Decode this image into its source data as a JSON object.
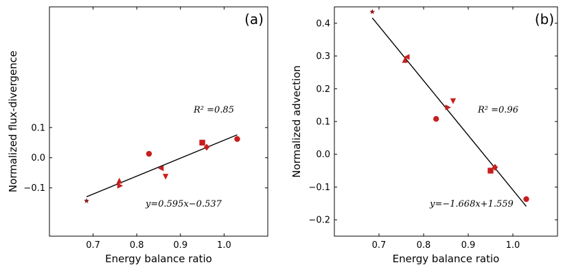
{
  "colors": {
    "marker": "#c81e1e",
    "marker_dark": "#8b1a1a",
    "fit_line": "#000000",
    "frame": "#000000"
  },
  "chart_data": [
    {
      "type": "scatter",
      "panel_label": "(a)",
      "xlabel": "Energy balance ratio",
      "ylabel": "Normalized flux-divergence",
      "xlim": [
        0.6,
        1.1
      ],
      "ylim": [
        -0.26,
        0.5
      ],
      "xticks": [
        "0.7",
        "0.8",
        "0.9",
        "1.0"
      ],
      "xtick_values": [
        0.7,
        0.8,
        0.9,
        1.0
      ],
      "yticks": [
        "−0.1",
        "0.0",
        "0.1"
      ],
      "ytick_values": [
        -0.1,
        0.0,
        0.1
      ],
      "r2_label": "R² =0.85",
      "equation_label": "y=0.595x−0.537",
      "fit": {
        "slope": 0.595,
        "intercept": -0.537,
        "x_range": [
          0.685,
          1.03
        ]
      },
      "points": [
        {
          "x": 0.685,
          "y": -0.143,
          "marker": "star"
        },
        {
          "x": 0.76,
          "y": -0.076,
          "marker": "triangle-up"
        },
        {
          "x": 0.762,
          "y": -0.093,
          "marker": "triangle-right"
        },
        {
          "x": 0.828,
          "y": 0.013,
          "marker": "circle"
        },
        {
          "x": 0.855,
          "y": -0.035,
          "marker": "triangle-left"
        },
        {
          "x": 0.866,
          "y": -0.063,
          "marker": "triangle-down"
        },
        {
          "x": 0.95,
          "y": 0.05,
          "marker": "square"
        },
        {
          "x": 0.96,
          "y": 0.035,
          "marker": "diamond"
        },
        {
          "x": 1.03,
          "y": 0.062,
          "marker": "circle"
        }
      ]
    },
    {
      "type": "scatter",
      "panel_label": "(b)",
      "xlabel": "Energy balance ratio",
      "ylabel": "Normalized advection",
      "xlim": [
        0.6,
        1.1
      ],
      "ylim": [
        -0.25,
        0.45
      ],
      "xticks": [
        "0.7",
        "0.8",
        "0.9",
        "1.0"
      ],
      "xtick_values": [
        0.7,
        0.8,
        0.9,
        1.0
      ],
      "yticks": [
        "−0.2",
        "−0.1",
        "0.0",
        "0.1",
        "0.2",
        "0.3",
        "0.4"
      ],
      "ytick_values": [
        -0.2,
        -0.1,
        0.0,
        0.1,
        0.2,
        0.3,
        0.4
      ],
      "r2_label": "R² =0.96",
      "equation_label": "y=−1.668x+1.559",
      "fit": {
        "slope": -1.668,
        "intercept": 1.559,
        "x_range": [
          0.685,
          1.03
        ]
      },
      "points": [
        {
          "x": 0.685,
          "y": 0.435,
          "marker": "star"
        },
        {
          "x": 0.758,
          "y": 0.288,
          "marker": "triangle-up"
        },
        {
          "x": 0.762,
          "y": 0.297,
          "marker": "triangle-left"
        },
        {
          "x": 0.828,
          "y": 0.108,
          "marker": "circle"
        },
        {
          "x": 0.855,
          "y": 0.143,
          "marker": "triangle-right"
        },
        {
          "x": 0.866,
          "y": 0.162,
          "marker": "triangle-down"
        },
        {
          "x": 0.95,
          "y": -0.05,
          "marker": "square"
        },
        {
          "x": 0.96,
          "y": -0.04,
          "marker": "diamond"
        },
        {
          "x": 1.03,
          "y": -0.137,
          "marker": "circle"
        }
      ]
    }
  ]
}
